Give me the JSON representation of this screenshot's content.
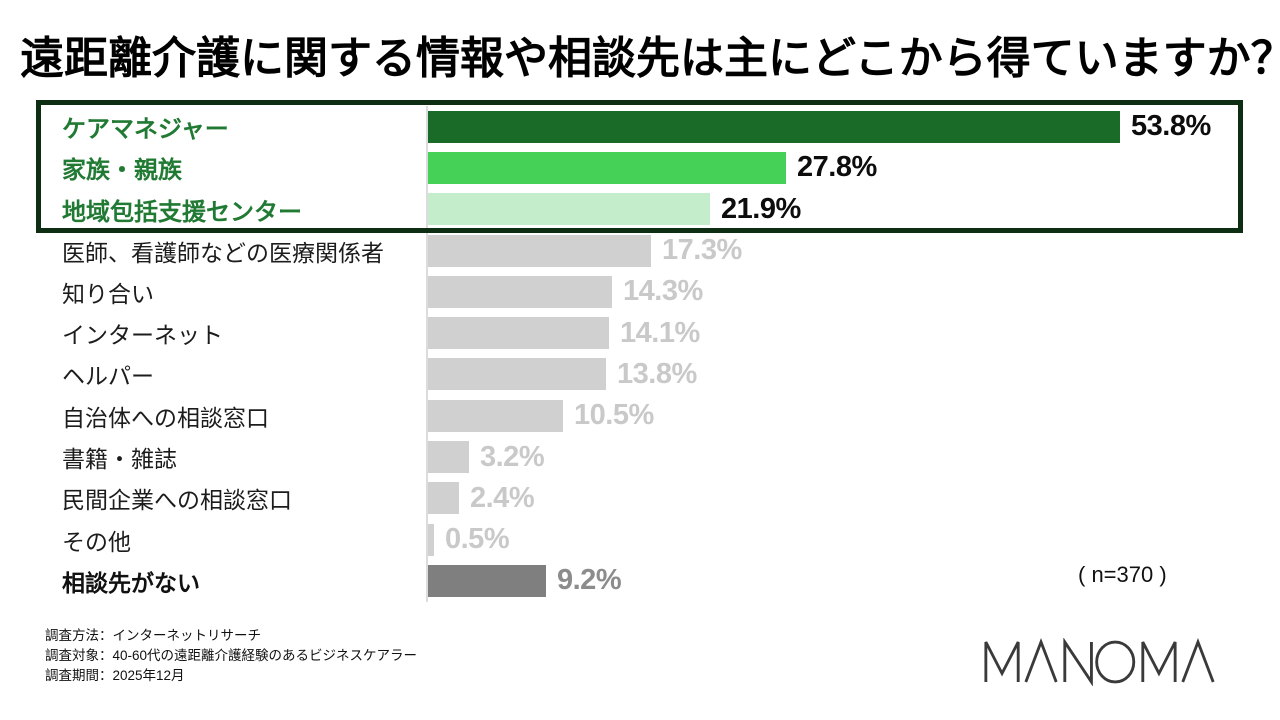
{
  "title": "遠距離介護に関する情報や相談先は主にどこから得ていますか？",
  "sample_note": "( n=370 )",
  "footer": {
    "line1": "調査方法：インターネットリサーチ",
    "line2": "調査対象：40-60代の遠距離介護経験のあるビジネスケアラー",
    "line3": "調査期間：2025年12月"
  },
  "logo_text": "MANOMA",
  "colors": {
    "title_text": "#000000",
    "highlight_border": "#0d2e12",
    "axis_line": "#dcdcdc",
    "label_green": "#217a33",
    "label_black": "#1c1c1c",
    "bar_green_dark": "#1b6b28",
    "bar_green_mid": "#45d058",
    "bar_green_light": "#c4eecb",
    "bar_gray": "#d0d0d0",
    "bar_dark_gray": "#7f7f7f",
    "pct_black": "#0d0d0d",
    "pct_gray": "#c9c9c9",
    "pct_dark_gray": "#8c8c8c",
    "logo_stroke": "#3a3a3a"
  },
  "chart_data": {
    "type": "bar",
    "orientation": "horizontal",
    "title": "遠距離介護に関する情報や相談先は主にどこから得ていますか？",
    "xlabel": "",
    "ylabel": "",
    "xlim": [
      0,
      55
    ],
    "grid": false,
    "legend": "none",
    "sample_size": 370,
    "highlight_top_n": 3,
    "categories": [
      "ケアマネジャー",
      "家族・親族",
      "地域包括支援センター",
      "医師、看護師などの医療関係者",
      "知り合い",
      "インターネット",
      "ヘルパー",
      "自治体への相談窓口",
      "書籍・雑誌",
      "民間企業への相談窓口",
      "その他",
      "相談先がない"
    ],
    "values": [
      53.8,
      27.8,
      21.9,
      17.3,
      14.3,
      14.1,
      13.8,
      10.5,
      3.2,
      2.4,
      0.5,
      9.2
    ],
    "rows": [
      {
        "label": "ケアマネジャー",
        "value": 53.8,
        "display": "53.8%",
        "style": "green-dark"
      },
      {
        "label": "家族・親族",
        "value": 27.8,
        "display": "27.8%",
        "style": "green-mid"
      },
      {
        "label": "地域包括支援センター",
        "value": 21.9,
        "display": "21.9%",
        "style": "green-light"
      },
      {
        "label": "医師、看護師などの医療関係者",
        "value": 17.3,
        "display": "17.3%",
        "style": "gray"
      },
      {
        "label": "知り合い",
        "value": 14.3,
        "display": "14.3%",
        "style": "gray"
      },
      {
        "label": "インターネット",
        "value": 14.1,
        "display": "14.1%",
        "style": "gray"
      },
      {
        "label": "ヘルパー",
        "value": 13.8,
        "display": "13.8%",
        "style": "gray"
      },
      {
        "label": "自治体への相談窓口",
        "value": 10.5,
        "display": "10.5%",
        "style": "gray"
      },
      {
        "label": "書籍・雑誌",
        "value": 3.2,
        "display": "3.2%",
        "style": "gray"
      },
      {
        "label": "民間企業への相談窓口",
        "value": 2.4,
        "display": "2.4%",
        "style": "gray"
      },
      {
        "label": "その他",
        "value": 0.5,
        "display": "0.5%",
        "style": "gray"
      },
      {
        "label": "相談先がない",
        "value": 9.2,
        "display": "9.2%",
        "style": "dark-gray"
      }
    ]
  }
}
